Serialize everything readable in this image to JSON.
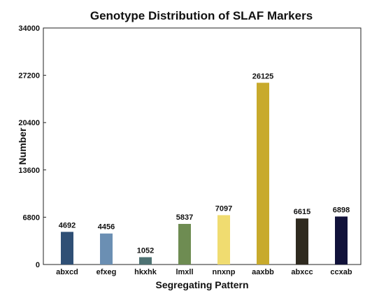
{
  "chart_data": {
    "type": "bar",
    "title": "Genotype Distribution of SLAF Markers",
    "xlabel": "Segregating Pattern",
    "ylabel": "Number",
    "categories": [
      "abxcd",
      "efxeg",
      "hkxhk",
      "lmxll",
      "nnxnp",
      "aaxbb",
      "abxcc",
      "ccxab"
    ],
    "values": [
      4692,
      4456,
      1052,
      5837,
      7097,
      26125,
      6615,
      6898
    ],
    "data_labels": [
      "4692",
      "4456",
      "1052",
      "5837",
      "7097",
      "26125",
      "6615",
      "6898"
    ],
    "colors": [
      "#2f4f75",
      "#6b8fb3",
      "#4e7273",
      "#6e8c52",
      "#f0dc70",
      "#c8aa2c",
      "#2f2a1f",
      "#11123a"
    ],
    "ylim": [
      0,
      34000
    ],
    "yticks": [
      0,
      6800,
      13600,
      20400,
      27200,
      34000
    ],
    "ytick_labels": [
      "0",
      "6800",
      "13600",
      "20400",
      "27200",
      "34000"
    ],
    "grid": false,
    "legend": "none"
  }
}
